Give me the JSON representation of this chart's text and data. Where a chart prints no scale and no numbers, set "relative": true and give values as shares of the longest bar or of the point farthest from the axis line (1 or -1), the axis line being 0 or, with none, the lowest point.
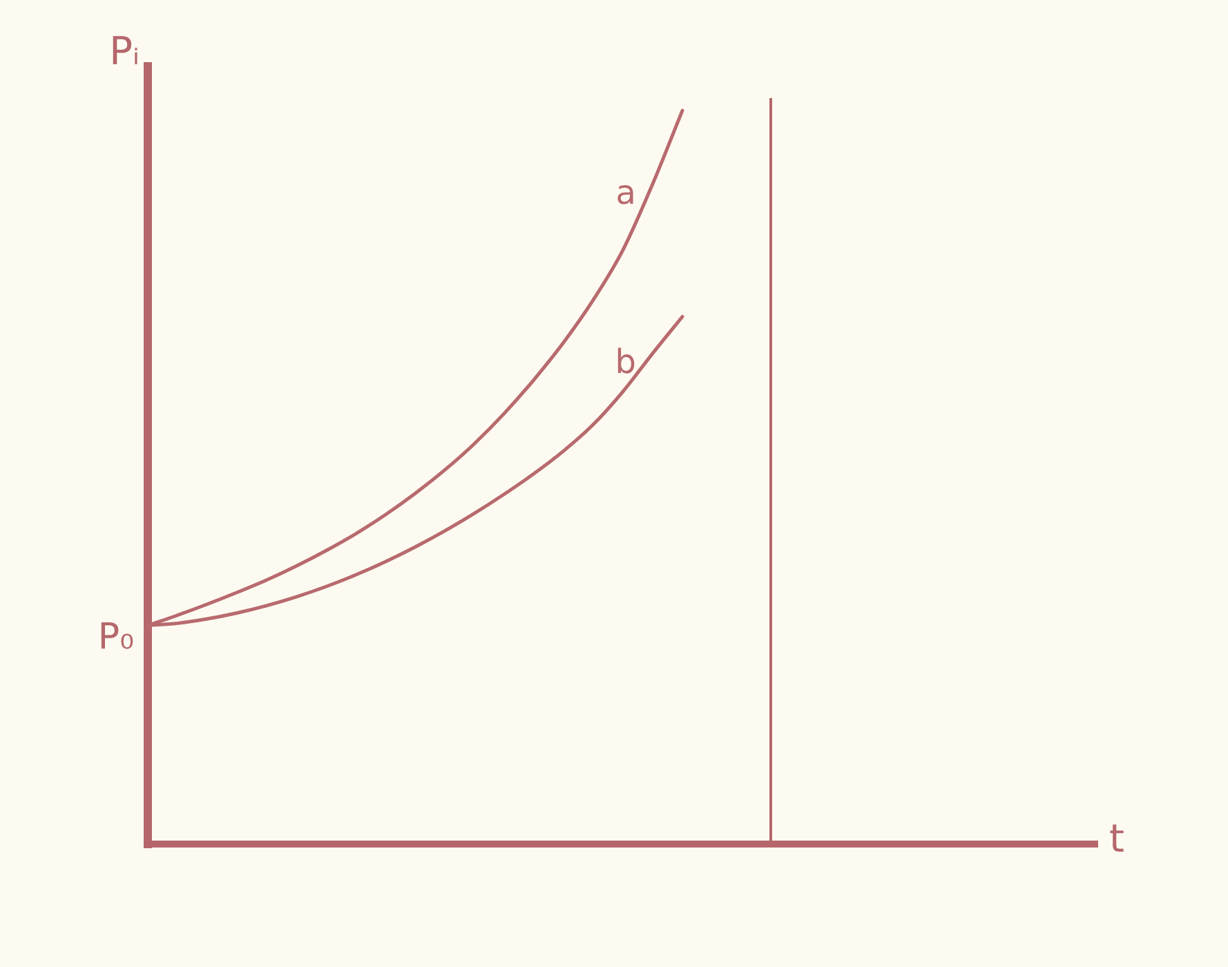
{
  "chart_data": {
    "type": "line",
    "xlabel": "t",
    "ylabel": "Pᵢ",
    "categories": [
      null,
      null,
      null,
      null,
      null,
      null,
      null,
      null,
      null,
      null,
      null,
      null,
      null,
      null,
      null,
      null,
      null,
      null,
      null,
      null,
      null,
      null,
      null,
      null,
      null,
      null,
      null,
      null,
      null,
      null,
      null,
      null,
      null
    ],
    "relative": true,
    "tick_labels": false,
    "legend": false,
    "marker": "none",
    "series": [
      {
        "name": "a",
        "color": "#b86a6e",
        "values": [
          0.298,
          0.312,
          0.327,
          0.343,
          0.36,
          0.379,
          0.4,
          0.423,
          0.449,
          0.478,
          0.51,
          0.546,
          0.587,
          0.633,
          0.684,
          0.742,
          0.81,
          0.9,
          1,
          null,
          null,
          null,
          null,
          null,
          null,
          null,
          null,
          null,
          null,
          null,
          null,
          null,
          null
        ]
      },
      {
        "name": "b",
        "color": "#b86a6e",
        "values": [
          0.298,
          0.301,
          0.307,
          0.315,
          0.325,
          0.337,
          0.351,
          0.367,
          0.385,
          0.405,
          0.427,
          0.451,
          0.477,
          0.505,
          0.536,
          0.572,
          0.617,
          0.669,
          0.719,
          null,
          null,
          null,
          null,
          null,
          null,
          null,
          null,
          null,
          null,
          null,
          null,
          null,
          null
        ]
      }
    ],
    "annotations": [
      "P₀"
    ]
  }
}
